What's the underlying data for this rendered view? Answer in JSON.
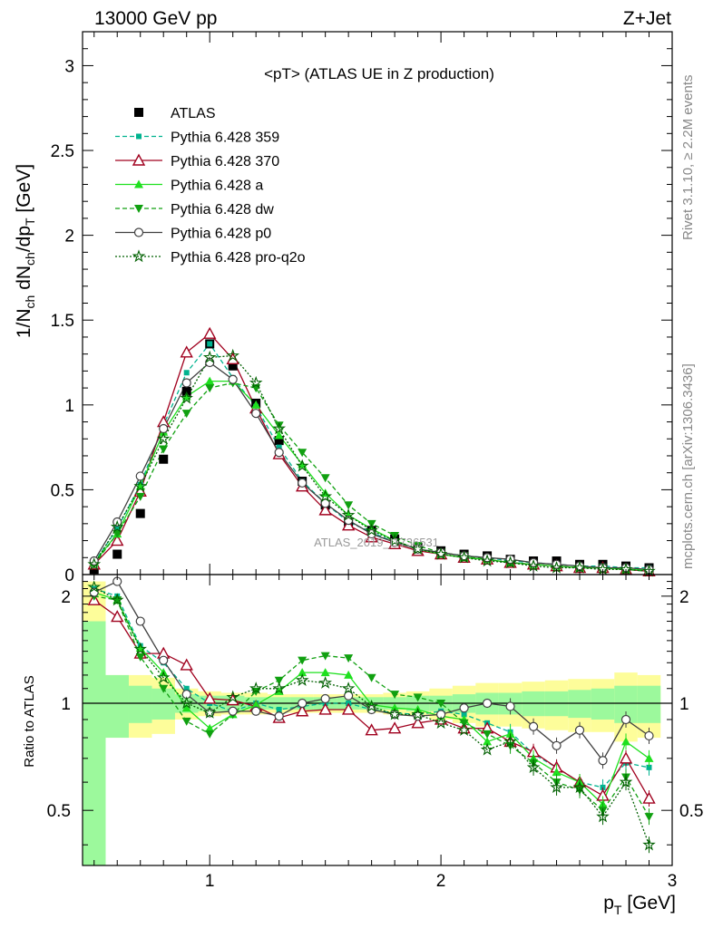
{
  "header": {
    "left": "13000 GeV pp",
    "right": "Z+Jet",
    "inner_title": "<pT> (ATLAS UE in Z production)",
    "side_top": "Rivet 3.1.10, ≥ 2.2M events",
    "side_bottom": "mcplots.cern.ch [arXiv:1306.3436]",
    "watermark": "ATLAS_2019_I1736531"
  },
  "colors": {
    "ATLAS": "#000000",
    "Pythia 6.428 359": "#00b38f",
    "Pythia 6.428 370": "#a0001e",
    "Pythia 6.428 a": "#1fe01f",
    "Pythia 6.428 dw": "#10a010",
    "Pythia 6.428 p0": "#404040",
    "Pythia 6.428 pro-q2o": "#006000",
    "band_inner": "#9cf99c",
    "band_outer": "#fdfd9a"
  },
  "chart_data": [
    {
      "type": "line",
      "title": "<pT> (ATLAS UE in Z production)",
      "ylabel": "1/N_ch dN_ch/dp_T [GeV]",
      "xlabel": "p_T [GeV]",
      "xlim": [
        0.45,
        3.0
      ],
      "ylim": [
        0,
        3.2
      ],
      "yticks": [
        0,
        0.5,
        1,
        1.5,
        2,
        2.5,
        3
      ],
      "x": [
        0.5,
        0.6,
        0.7,
        0.8,
        0.9,
        1.0,
        1.1,
        1.2,
        1.3,
        1.4,
        1.5,
        1.6,
        1.7,
        1.8,
        1.9,
        2.0,
        2.1,
        2.2,
        2.3,
        2.4,
        2.5,
        2.6,
        2.7,
        2.8,
        2.9
      ],
      "series": [
        {
          "name": "ATLAS",
          "values": [
            0.03,
            0.12,
            0.36,
            0.68,
            1.08,
            1.36,
            1.23,
            1.01,
            0.79,
            0.55,
            0.41,
            0.31,
            0.26,
            0.21,
            0.16,
            0.14,
            0.12,
            0.11,
            0.09,
            0.08,
            0.08,
            0.06,
            0.06,
            0.05,
            0.04
          ]
        },
        {
          "name": "Pythia 6.428 359",
          "values": [
            0.07,
            0.27,
            0.53,
            0.88,
            1.19,
            1.36,
            1.16,
            0.99,
            0.75,
            0.55,
            0.42,
            0.31,
            0.25,
            0.19,
            0.15,
            0.13,
            0.11,
            0.1,
            0.08,
            0.07,
            0.06,
            0.05,
            0.05,
            0.04,
            0.04
          ]
        },
        {
          "name": "Pythia 6.428 370",
          "values": [
            0.06,
            0.2,
            0.49,
            0.9,
            1.31,
            1.42,
            1.27,
            0.98,
            0.71,
            0.52,
            0.38,
            0.29,
            0.22,
            0.18,
            0.14,
            0.12,
            0.1,
            0.09,
            0.07,
            0.06,
            0.05,
            0.04,
            0.04,
            0.03,
            0.02
          ]
        },
        {
          "name": "Pythia 6.428 a",
          "values": [
            0.07,
            0.24,
            0.52,
            0.84,
            1.05,
            1.14,
            1.14,
            1.0,
            0.82,
            0.65,
            0.48,
            0.35,
            0.27,
            0.2,
            0.15,
            0.12,
            0.1,
            0.09,
            0.07,
            0.06,
            0.05,
            0.04,
            0.04,
            0.03,
            0.03
          ]
        },
        {
          "name": "Pythia 6.428 dw",
          "values": [
            0.06,
            0.24,
            0.46,
            0.74,
            0.95,
            1.1,
            1.13,
            1.1,
            0.88,
            0.72,
            0.57,
            0.41,
            0.3,
            0.23,
            0.17,
            0.13,
            0.11,
            0.09,
            0.07,
            0.06,
            0.05,
            0.04,
            0.04,
            0.03,
            0.02
          ]
        },
        {
          "name": "Pythia 6.428 p0",
          "values": [
            0.08,
            0.31,
            0.58,
            0.86,
            1.13,
            1.25,
            1.15,
            0.95,
            0.72,
            0.54,
            0.42,
            0.32,
            0.24,
            0.19,
            0.15,
            0.13,
            0.11,
            0.1,
            0.09,
            0.07,
            0.06,
            0.05,
            0.04,
            0.04,
            0.03
          ]
        },
        {
          "name": "Pythia 6.428 pro-q2o",
          "values": [
            0.06,
            0.28,
            0.52,
            0.8,
            1.04,
            1.28,
            1.29,
            1.13,
            0.86,
            0.64,
            0.46,
            0.35,
            0.26,
            0.2,
            0.15,
            0.12,
            0.1,
            0.08,
            0.07,
            0.05,
            0.04,
            0.04,
            0.03,
            0.03,
            0.02
          ]
        }
      ]
    },
    {
      "type": "line",
      "ylabel": "Ratio to ATLAS",
      "xlabel": "p_T [GeV]",
      "xlim": [
        0.45,
        3.0
      ],
      "ylim": [
        0.35,
        2.3
      ],
      "xticks": [
        1,
        2,
        3
      ],
      "yticks": [
        0.5,
        1,
        2
      ],
      "x": [
        0.5,
        0.6,
        0.7,
        0.8,
        0.9,
        1.0,
        1.1,
        1.2,
        1.3,
        1.4,
        1.5,
        1.6,
        1.7,
        1.8,
        1.9,
        2.0,
        2.1,
        2.2,
        2.3,
        2.4,
        2.5,
        2.6,
        2.7,
        2.8,
        2.9
      ],
      "band_inner": [
        [
          0.45,
          0.55,
          1.7
        ],
        [
          0.55,
          0.65,
          1.2
        ],
        [
          0.65,
          0.75,
          1.12
        ],
        [
          0.75,
          0.85,
          1.1
        ],
        [
          0.85,
          0.95,
          1.06
        ],
        [
          0.95,
          1.05,
          1.05
        ],
        [
          1.05,
          1.15,
          1.05
        ],
        [
          1.15,
          1.25,
          1.04
        ],
        [
          1.25,
          1.35,
          1.04
        ],
        [
          1.35,
          1.45,
          1.04
        ],
        [
          1.45,
          1.55,
          1.04
        ],
        [
          1.55,
          1.65,
          1.04
        ],
        [
          1.65,
          1.75,
          1.04
        ],
        [
          1.75,
          1.85,
          1.04
        ],
        [
          1.85,
          1.95,
          1.05
        ],
        [
          1.95,
          2.05,
          1.05
        ],
        [
          2.05,
          2.15,
          1.06
        ],
        [
          2.15,
          2.25,
          1.07
        ],
        [
          2.25,
          2.35,
          1.07
        ],
        [
          2.35,
          2.45,
          1.08
        ],
        [
          2.45,
          2.55,
          1.08
        ],
        [
          2.55,
          2.65,
          1.09
        ],
        [
          2.65,
          2.75,
          1.1
        ],
        [
          2.75,
          2.85,
          1.12
        ],
        [
          2.85,
          2.95,
          1.12
        ]
      ],
      "band_outer": [
        [
          0.45,
          0.55,
          2.2
        ],
        [
          0.55,
          0.65,
          1.2
        ],
        [
          0.65,
          0.75,
          1.2
        ],
        [
          0.75,
          0.85,
          1.18
        ],
        [
          0.85,
          0.95,
          1.1
        ],
        [
          0.95,
          1.05,
          1.08
        ],
        [
          1.05,
          1.15,
          1.07
        ],
        [
          1.15,
          1.25,
          1.07
        ],
        [
          1.25,
          1.35,
          1.06
        ],
        [
          1.35,
          1.45,
          1.06
        ],
        [
          1.45,
          1.55,
          1.06
        ],
        [
          1.55,
          1.65,
          1.06
        ],
        [
          1.65,
          1.75,
          1.06
        ],
        [
          1.75,
          1.85,
          1.07
        ],
        [
          1.85,
          1.95,
          1.08
        ],
        [
          1.95,
          2.05,
          1.1
        ],
        [
          2.05,
          2.15,
          1.12
        ],
        [
          2.15,
          2.25,
          1.14
        ],
        [
          2.25,
          2.35,
          1.14
        ],
        [
          2.35,
          2.45,
          1.15
        ],
        [
          2.45,
          2.55,
          1.16
        ],
        [
          2.55,
          2.65,
          1.17
        ],
        [
          2.65,
          2.75,
          1.17
        ],
        [
          2.75,
          2.85,
          1.22
        ],
        [
          2.85,
          2.95,
          1.2
        ]
      ],
      "series": [
        {
          "name": "Pythia 6.428 359",
          "values": [
            2.1,
            2.0,
            1.45,
            1.3,
            1.1,
            1.0,
            0.95,
            1.0,
            0.96,
            0.98,
            1.0,
            1.0,
            0.96,
            0.94,
            0.93,
            0.95,
            0.93,
            0.88,
            0.83,
            0.72,
            0.66,
            0.6,
            0.58,
            0.68,
            0.66
          ]
        },
        {
          "name": "Pythia 6.428 370",
          "values": [
            1.95,
            1.75,
            1.38,
            1.38,
            1.28,
            1.03,
            1.02,
            0.98,
            0.91,
            0.95,
            0.96,
            0.96,
            0.84,
            0.85,
            0.88,
            0.9,
            0.85,
            0.85,
            0.78,
            0.73,
            0.66,
            0.6,
            0.55,
            0.7,
            0.54
          ]
        },
        {
          "name": "Pythia 6.428 a",
          "values": [
            2.05,
            1.95,
            1.43,
            1.22,
            0.97,
            0.85,
            0.93,
            0.99,
            1.08,
            1.22,
            1.22,
            1.2,
            0.99,
            0.97,
            0.96,
            0.92,
            0.9,
            0.78,
            0.82,
            0.7,
            0.64,
            0.6,
            0.52,
            0.78,
            0.7
          ]
        },
        {
          "name": "Pythia 6.428 dw",
          "values": [
            2.0,
            1.95,
            1.35,
            1.1,
            0.89,
            0.82,
            0.93,
            1.08,
            1.16,
            1.32,
            1.36,
            1.34,
            1.18,
            1.06,
            1.04,
            1.0,
            0.88,
            0.82,
            0.76,
            0.68,
            0.6,
            0.57,
            0.5,
            0.62,
            0.48
          ]
        },
        {
          "name": "Pythia 6.428 p0",
          "values": [
            2.05,
            2.2,
            1.7,
            1.32,
            1.06,
            0.94,
            0.95,
            0.95,
            0.92,
            1.0,
            1.03,
            1.05,
            0.96,
            0.93,
            0.92,
            0.93,
            0.97,
            1.0,
            0.98,
            0.86,
            0.76,
            0.84,
            0.69,
            0.9,
            0.81
          ]
        },
        {
          "name": "Pythia 6.428 pro-q2o",
          "values": [
            2.12,
            1.95,
            1.42,
            1.18,
            1.0,
            0.94,
            1.04,
            1.1,
            1.1,
            1.16,
            1.14,
            1.1,
            0.98,
            0.93,
            0.93,
            0.88,
            0.84,
            0.74,
            0.78,
            0.66,
            0.58,
            0.58,
            0.48,
            0.6,
            0.4
          ]
        }
      ]
    }
  ]
}
